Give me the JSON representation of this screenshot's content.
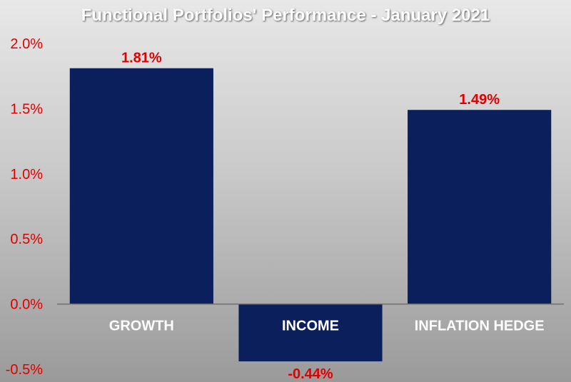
{
  "chart_data": {
    "type": "bar",
    "title": "Functional Portfolios' Performance - January 2021",
    "categories": [
      "GROWTH",
      "INCOME",
      "INFLATION HEDGE"
    ],
    "values": [
      1.81,
      -0.44,
      1.49
    ],
    "value_labels": [
      "1.81%",
      "-0.44%",
      "1.49%"
    ],
    "ylim": [
      -0.5,
      2.0
    ],
    "yticks": [
      -0.5,
      0.0,
      0.5,
      1.0,
      1.5,
      2.0
    ],
    "ytick_labels": [
      "-0.5%",
      "0.0%",
      "0.5%",
      "1.0%",
      "1.5%",
      "2.0%"
    ],
    "xlabel": "",
    "ylabel": "",
    "grid": false,
    "legend": "none",
    "colors": {
      "bar": "#0a1f5c",
      "value_label": "#e00000",
      "tick_label": "#e00000",
      "category_label": "#ffffff",
      "title": "#ffffff",
      "axis": "#6f6f6f"
    }
  }
}
